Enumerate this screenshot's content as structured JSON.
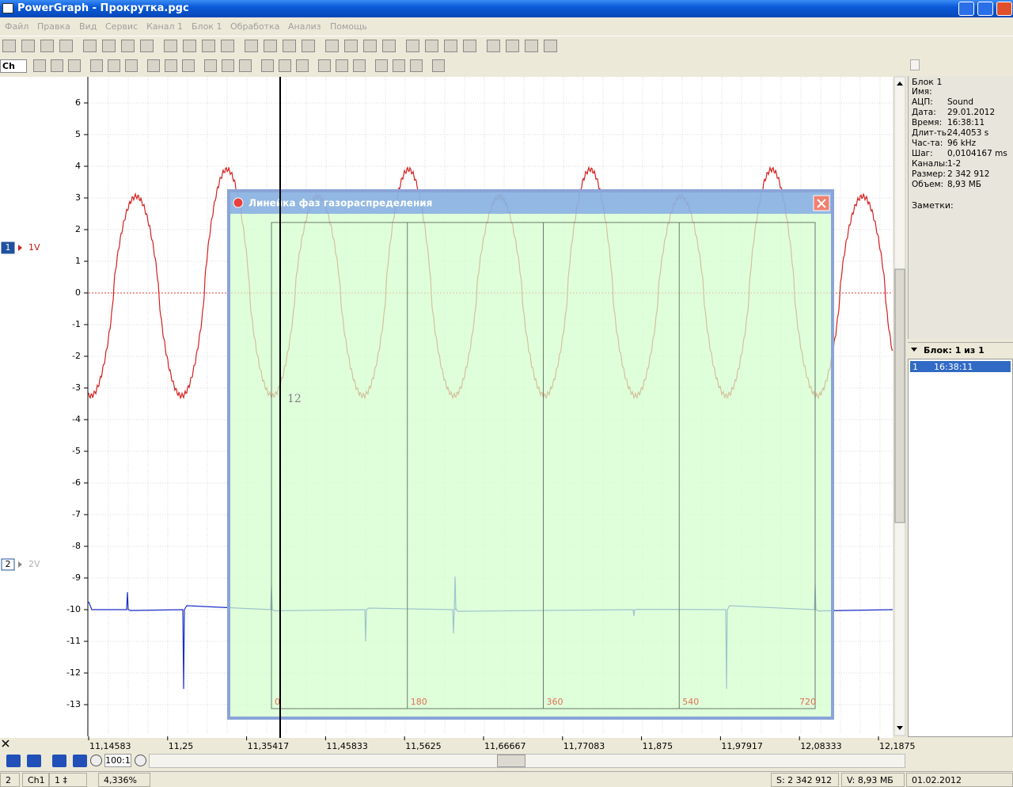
{
  "window": {
    "title": "PowerGraph - Прокрутка.pgc"
  },
  "menu": [
    "Файл",
    "Правка",
    "Вид",
    "Сервис",
    "Канал 1",
    "Блок 1",
    "Обработка",
    "Анализ",
    "Помощь"
  ],
  "toolbar": {
    "channel_select": "Ch"
  },
  "plot": {
    "y_ticks": [
      6,
      5,
      4,
      3,
      2,
      1,
      0,
      -1,
      -2,
      -3,
      -4,
      -5,
      -6,
      -7,
      -8,
      -9,
      -10,
      -11,
      -12,
      -13
    ],
    "x_ticks": [
      "11,14583",
      "11,25",
      "11,35417",
      "11,45833",
      "11,5625",
      "11,66667",
      "11,77083",
      "11,875",
      "11,97917",
      "12,08333",
      "12,1875"
    ],
    "channels": [
      {
        "number": "1",
        "label": "1V"
      },
      {
        "number": "2",
        "label": "2V"
      }
    ],
    "marker": "12"
  },
  "dialog": {
    "title": "Линейка фаз газораспределения",
    "phase_labels": [
      0,
      180,
      360,
      540,
      720
    ]
  },
  "info_panel": {
    "block": "Блок 1",
    "fields": [
      [
        "Имя:"
      ],
      [
        "АЦП:",
        "Sound"
      ],
      [
        "Дата:",
        "29.01.2012"
      ],
      [
        "Время:",
        "16:38:11"
      ],
      [
        "Длит-ть:",
        "24,4053 s"
      ],
      [
        "Час-та:",
        "96 kHz"
      ],
      [
        "Шаг:",
        "0,0104167 ms"
      ],
      [
        "Каналы:",
        "1-2"
      ],
      [
        "Размер:",
        "2 342 912"
      ],
      [
        "Объем:",
        "8,93 МБ"
      ]
    ],
    "notes_label": "Заметки:"
  },
  "block_list": {
    "header": "Блок: 1 из 1",
    "rows": [
      [
        "1",
        "16:38:11"
      ]
    ]
  },
  "navigation": {
    "zoom": "100:1"
  },
  "status": [
    "2",
    "Ch1",
    "1 ‡",
    "4,336%",
    "S: 2 342 912",
    "V: 8,93 МБ",
    "01.02.2012"
  ]
}
